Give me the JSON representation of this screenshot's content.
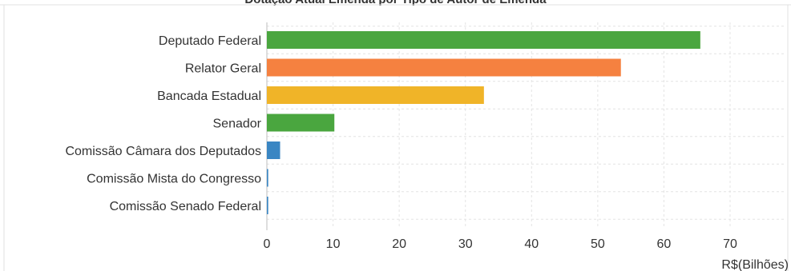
{
  "chart_data": {
    "type": "bar",
    "orientation": "horizontal",
    "title": "Dotação Atual Emenda por Tipo de Autor de Emenda",
    "xlabel": "R$(Bilhões)",
    "ylabel": "",
    "categories": [
      "Deputado Federal",
      "Relator Geral",
      "Bancada Estadual",
      "Senador",
      "Comissão Câmara dos Deputados",
      "Comissão Mista do Congresso",
      "Comissão Senado Federal"
    ],
    "values": [
      65.5,
      53.5,
      32.8,
      10.2,
      2.0,
      0.2,
      0.2
    ],
    "bar_colors": [
      "#4aa63f",
      "#f58140",
      "#f0b428",
      "#4aa63f",
      "#3a86c3",
      "#3a86c3",
      "#3a86c3"
    ],
    "xlim": [
      0,
      80
    ],
    "xticks": [
      0,
      10,
      20,
      30,
      40,
      50,
      60,
      70
    ],
    "grid": true
  }
}
